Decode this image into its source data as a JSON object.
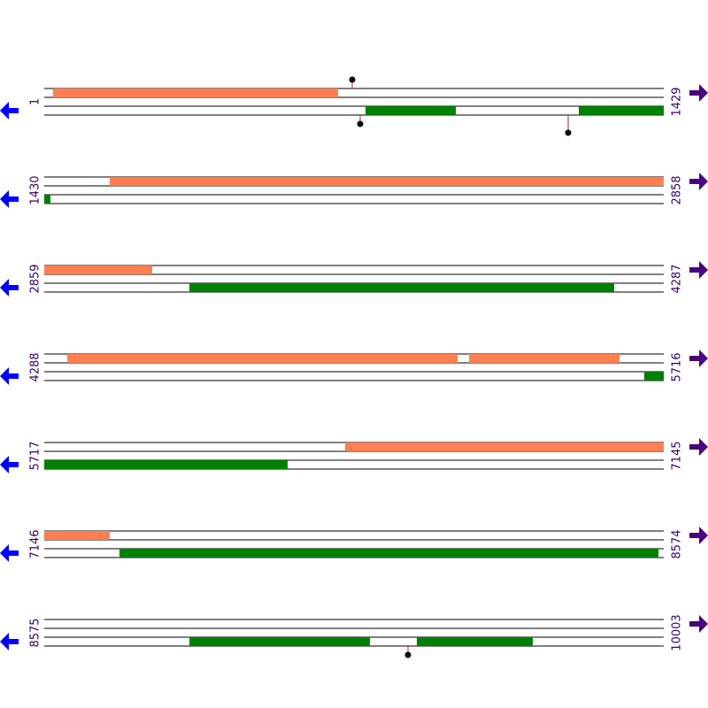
{
  "rows": [
    {
      "start": 1,
      "end": 1429
    },
    {
      "start": 1430,
      "end": 2858
    },
    {
      "start": 2859,
      "end": 4287
    },
    {
      "start": 4288,
      "end": 5716
    },
    {
      "start": 5717,
      "end": 7145
    },
    {
      "start": 7146,
      "end": 8574
    },
    {
      "start": 8575,
      "end": 10003
    }
  ]
}
